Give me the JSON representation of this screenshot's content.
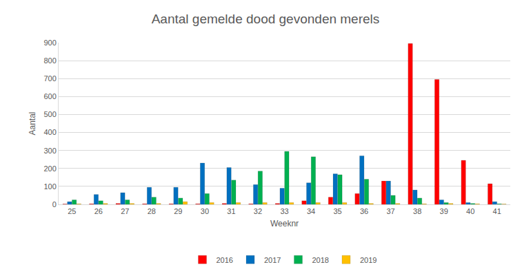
{
  "chart_data": {
    "type": "bar",
    "title": "Aantal gemelde dood gevonden merels",
    "x_label": "Weeknr",
    "y_label": "Aantal",
    "categories": [
      "25",
      "26",
      "27",
      "28",
      "29",
      "30",
      "31",
      "32",
      "33",
      "34",
      "35",
      "36",
      "37",
      "38",
      "39",
      "40",
      "41"
    ],
    "series": [
      {
        "name": "2016",
        "color": "#ff0000",
        "values": [
          2,
          3,
          5,
          3,
          3,
          3,
          5,
          3,
          5,
          20,
          40,
          60,
          130,
          895,
          695,
          245,
          115
        ]
      },
      {
        "name": "2017",
        "color": "#0070c0",
        "values": [
          15,
          55,
          65,
          95,
          95,
          230,
          205,
          110,
          90,
          120,
          170,
          270,
          130,
          80,
          25,
          10,
          15
        ]
      },
      {
        "name": "2018",
        "color": "#00b050",
        "values": [
          25,
          20,
          25,
          40,
          35,
          60,
          135,
          185,
          295,
          265,
          165,
          140,
          50,
          35,
          10,
          5,
          3
        ]
      },
      {
        "name": "2019",
        "color": "#ffc000",
        "values": [
          3,
          5,
          5,
          5,
          15,
          10,
          10,
          10,
          10,
          10,
          10,
          5,
          5,
          3,
          5,
          3,
          2
        ]
      }
    ],
    "ylim": [
      0,
      900
    ],
    "yticks": [
      0,
      100,
      200,
      300,
      400,
      500,
      600,
      700,
      800,
      900
    ],
    "grid": true,
    "legend": "bottom"
  }
}
